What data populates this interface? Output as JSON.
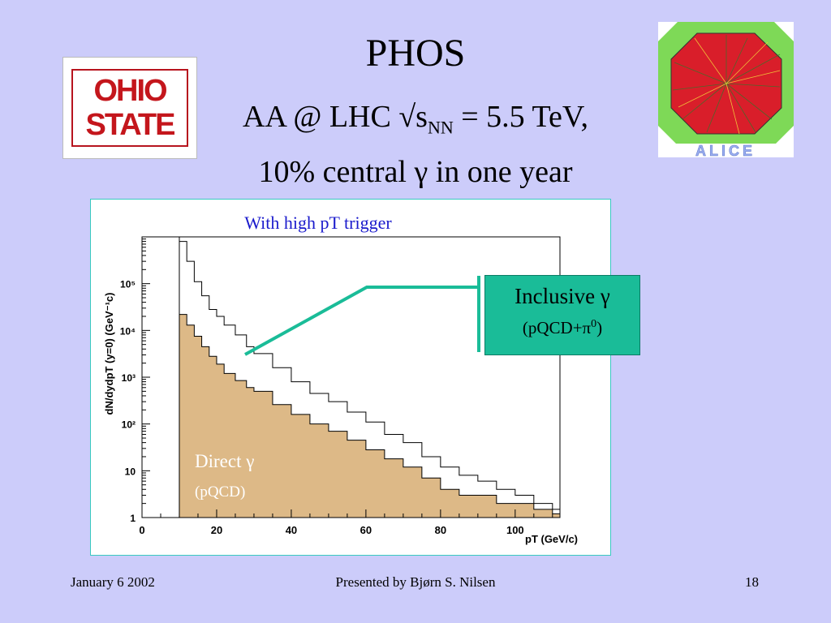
{
  "slide": {
    "title": "PHOS",
    "subtitle_pre": "AA @ LHC √s",
    "subtitle_sub": "NN",
    "subtitle_post": " = 5.5 TeV,",
    "subtitle2": "10% central γ in one year",
    "logo_left": [
      "OHIO",
      "STATE"
    ],
    "logo_right": "ALICE"
  },
  "footer": {
    "date": "January 6 2002",
    "presenter": "Presented by Bjørn S. Nilsen",
    "page": "18"
  },
  "callout": {
    "line1": "Inclusive γ",
    "line2_pre": "(pQCD+π",
    "line2_sup": "0",
    "line2_post": ")"
  },
  "chart_data": {
    "type": "area",
    "title": "With high pT trigger",
    "xlabel": "pT (GeV/c)",
    "ylabel": "dN/dydpT (y=0) (GeV⁻¹c)",
    "xlim": [
      0,
      112
    ],
    "ylim": [
      1,
      1000000
    ],
    "yscale": "log",
    "xticks": [
      0,
      20,
      40,
      60,
      80,
      100
    ],
    "yticks": [
      {
        "v": 1,
        "label": "1"
      },
      {
        "v": 10,
        "label": "10"
      },
      {
        "v": 100,
        "label": "10²"
      },
      {
        "v": 1000,
        "label": "10³"
      },
      {
        "v": 10000,
        "label": "10⁴"
      },
      {
        "v": 100000,
        "label": "10⁵"
      }
    ],
    "series": [
      {
        "name": "Inclusive γ (pQCD+π0)",
        "style": "line",
        "color": "#000000",
        "x": [
          10,
          12,
          14,
          16,
          18,
          20,
          22,
          25,
          28,
          30,
          35,
          40,
          45,
          50,
          55,
          60,
          65,
          70,
          75,
          80,
          85,
          90,
          95,
          100,
          105,
          110
        ],
        "y": [
          800000,
          300000,
          110000,
          55000,
          28000,
          20000,
          13000,
          8000,
          4500,
          3200,
          1600,
          800,
          450,
          300,
          180,
          110,
          60,
          40,
          20,
          12,
          8,
          6,
          4,
          3,
          2,
          1.5
        ]
      },
      {
        "name": "Direct γ (pQCD)",
        "style": "filled",
        "color": "#ddb987",
        "x": [
          10,
          12,
          14,
          16,
          18,
          20,
          22,
          25,
          28,
          30,
          35,
          40,
          45,
          50,
          55,
          60,
          65,
          70,
          75,
          80,
          85,
          90,
          95,
          100,
          105,
          110
        ],
        "y": [
          22000,
          13000,
          7500,
          4500,
          2800,
          1900,
          1200,
          850,
          600,
          500,
          260,
          160,
          100,
          70,
          45,
          28,
          18,
          12,
          7,
          4,
          3,
          3,
          2,
          2,
          1.5,
          1.2
        ]
      }
    ],
    "annotations": [
      {
        "text": "Direct γ",
        "sub": "(pQCD)"
      }
    ]
  },
  "colors": {
    "background": "#ccccfa",
    "direct_fill": "#ddb987",
    "callout": "#1abc98",
    "title_blue": "#1a1acc"
  }
}
